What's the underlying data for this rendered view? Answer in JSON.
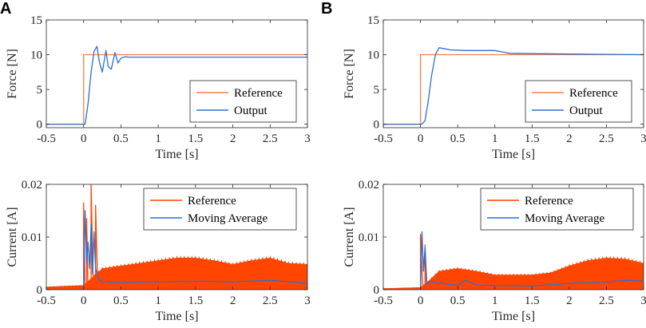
{
  "figure": {
    "panel_labels": [
      "A",
      "B"
    ],
    "colors": {
      "reference": "#ff4500",
      "reference_line": "#f08050",
      "output": "#2c6fd1",
      "axis": "#262626"
    }
  },
  "chart_data": [
    {
      "panel": "A",
      "type": "line",
      "xlabel": "Time [s]",
      "ylabel": "Force [N]",
      "xlim": [
        -0.5,
        3
      ],
      "ylim": [
        -0.5,
        15
      ],
      "xticks": [
        "-0.5",
        "0",
        "0.5",
        "1",
        "1.5",
        "2",
        "2.5",
        "3"
      ],
      "yticks": [
        "0",
        "5",
        "10",
        "15"
      ],
      "legend": [
        "Reference",
        "Output"
      ],
      "series": [
        {
          "name": "Reference",
          "x": [
            -0.5,
            0,
            0,
            3
          ],
          "y": [
            0,
            0,
            10,
            10
          ]
        },
        {
          "name": "Output",
          "x": [
            -0.5,
            0.02,
            0.06,
            0.1,
            0.14,
            0.18,
            0.21,
            0.25,
            0.3,
            0.33,
            0.37,
            0.42,
            0.46,
            0.5,
            0.55,
            0.6,
            3.0
          ],
          "y": [
            0,
            0,
            3,
            7.5,
            10.5,
            11.2,
            9,
            7.5,
            10.6,
            8.3,
            7.9,
            10.3,
            8.8,
            9.5,
            9.7,
            9.65,
            9.65
          ]
        }
      ]
    },
    {
      "panel": "B",
      "type": "line",
      "xlabel": "Time [s]",
      "ylabel": "Force [N]",
      "xlim": [
        -0.5,
        3
      ],
      "ylim": [
        -0.5,
        15
      ],
      "xticks": [
        "-0.5",
        "0",
        "0.5",
        "1",
        "1.5",
        "2",
        "2.5",
        "3"
      ],
      "yticks": [
        "0",
        "5",
        "10",
        "15"
      ],
      "legend": [
        "Reference",
        "Output"
      ],
      "series": [
        {
          "name": "Reference",
          "x": [
            -0.5,
            0,
            0,
            3
          ],
          "y": [
            0,
            0,
            10,
            10
          ]
        },
        {
          "name": "Output",
          "x": [
            -0.5,
            0.02,
            0.06,
            0.1,
            0.15,
            0.2,
            0.25,
            0.3,
            0.4,
            0.6,
            0.8,
            1.0,
            1.1,
            1.2,
            1.5,
            2.0,
            2.5,
            3.0
          ],
          "y": [
            0,
            0,
            0.5,
            3,
            7,
            10,
            11,
            10.9,
            10.7,
            10.6,
            10.6,
            10.6,
            10.4,
            10.2,
            10.15,
            10.1,
            10.05,
            10.0
          ]
        }
      ]
    },
    {
      "panel": "A",
      "type": "line",
      "xlabel": "Time [s]",
      "ylabel": "Current [A]",
      "xlim": [
        -0.5,
        3
      ],
      "ylim": [
        0,
        0.02
      ],
      "xticks": [
        "-0.5",
        "0",
        "0.5",
        "1",
        "1.5",
        "2",
        "2.5",
        "3"
      ],
      "yticks": [
        "0",
        "0.01",
        "0.02"
      ],
      "legend": [
        "Reference",
        "Moving Average"
      ],
      "series": [
        {
          "name": "Reference",
          "band": true,
          "x": [
            -0.5,
            0,
            0.25,
            0.5,
            0.75,
            1.0,
            1.25,
            1.5,
            1.75,
            2.0,
            2.25,
            2.5,
            2.75,
            3.0
          ],
          "lo": [
            0,
            0,
            0,
            0,
            0,
            0,
            0,
            0,
            0,
            0,
            0,
            0,
            0,
            0
          ],
          "hi": [
            0.0005,
            0.0008,
            0.004,
            0.0045,
            0.005,
            0.0055,
            0.006,
            0.006,
            0.0055,
            0.0048,
            0.0055,
            0.006,
            0.005,
            0.0048
          ]
        },
        {
          "name": "Reference spikes",
          "x": [
            0.0,
            0.0,
            0.02,
            0.04,
            0.04,
            0.06,
            0.1,
            0.1,
            0.13,
            0.16,
            0.16,
            0.19
          ],
          "y": [
            0.0,
            0.0165,
            0.0,
            0.0,
            0.0135,
            0.0,
            0.0,
            0.02,
            0.0,
            0.0,
            0.016,
            0.0
          ]
        },
        {
          "name": "Moving Average",
          "x": [
            -0.5,
            0.0,
            0.02,
            0.04,
            0.06,
            0.08,
            0.1,
            0.12,
            0.14,
            0.16,
            0.2,
            0.25,
            0.5,
            1.0,
            1.5,
            2.0,
            2.5,
            3.0
          ],
          "y": [
            0,
            0,
            0.015,
            0.005,
            0.009,
            0.004,
            0.0125,
            0.003,
            0.011,
            0.004,
            0.002,
            0.0015,
            0.0014,
            0.0015,
            0.0016,
            0.0015,
            0.0018,
            0.0012
          ]
        }
      ]
    },
    {
      "panel": "B",
      "type": "line",
      "xlabel": "Time [s]",
      "ylabel": "Current [A]",
      "xlim": [
        -0.5,
        3
      ],
      "ylim": [
        0,
        0.02
      ],
      "xticks": [
        "-0.5",
        "0",
        "0.5",
        "1",
        "1.5",
        "2",
        "2.5",
        "3"
      ],
      "yticks": [
        "0",
        "0.01",
        "0.02"
      ],
      "legend": [
        "Reference",
        "Moving Average"
      ],
      "series": [
        {
          "name": "Reference",
          "band": true,
          "x": [
            -0.5,
            0,
            0.1,
            0.25,
            0.5,
            0.75,
            1.0,
            1.25,
            1.5,
            1.75,
            2.0,
            2.25,
            2.5,
            2.75,
            3.0
          ],
          "lo": [
            0,
            0,
            0,
            0,
            0,
            0,
            0,
            0,
            0,
            0,
            0,
            0,
            0,
            0,
            0
          ],
          "hi": [
            0.0002,
            0.0004,
            0.0015,
            0.0035,
            0.004,
            0.0035,
            0.0028,
            0.0028,
            0.0028,
            0.0032,
            0.0045,
            0.0055,
            0.006,
            0.0058,
            0.005
          ]
        },
        {
          "name": "Reference spikes",
          "x": [
            0.0,
            0.0,
            0.03,
            0.06,
            0.06,
            0.09
          ],
          "y": [
            0.0,
            0.0105,
            0.0,
            0.0,
            0.0085,
            0.0
          ]
        },
        {
          "name": "Moving Average",
          "x": [
            -0.5,
            0.0,
            0.02,
            0.04,
            0.06,
            0.08,
            0.12,
            0.3,
            0.5,
            0.6,
            0.75,
            1.0,
            1.5,
            2.0,
            2.5,
            2.8,
            3.0
          ],
          "y": [
            0,
            0,
            0.011,
            0.0035,
            0.008,
            0.001,
            0.0015,
            0.0012,
            0.0008,
            0.0018,
            0.0009,
            0.0008,
            0.0007,
            0.0012,
            0.0015,
            0.0018,
            0.0016
          ]
        }
      ]
    }
  ]
}
